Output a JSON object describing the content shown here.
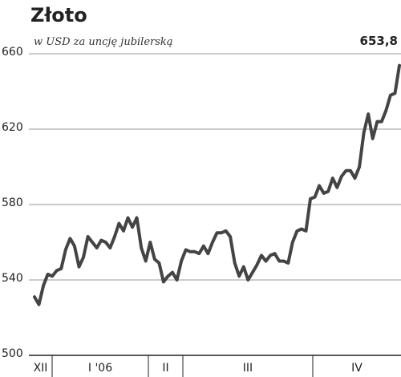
{
  "chart_data": {
    "type": "line",
    "title": "Złoto",
    "subtitle": "w USD za uncję jubilerską",
    "periods": [
      "XII",
      "I '06",
      "II",
      "III",
      "IV"
    ],
    "series": [
      {
        "color": "#444444",
        "values": [
          531,
          527,
          537,
          543,
          542,
          545,
          546,
          556,
          562,
          558,
          547,
          552,
          563,
          560,
          557,
          561,
          560,
          557,
          563,
          570,
          566,
          573,
          568,
          573,
          557,
          550,
          560,
          551,
          549,
          539,
          542,
          544,
          540,
          550,
          556,
          555,
          555,
          554,
          558,
          554,
          560,
          565,
          565,
          566,
          563,
          549,
          542,
          547,
          540,
          544,
          548,
          553,
          550,
          553,
          554,
          550,
          550,
          549,
          560,
          566,
          567,
          566,
          583,
          584,
          590,
          586,
          587,
          594,
          589,
          595,
          598,
          598,
          594,
          600,
          618,
          628,
          615,
          624,
          624,
          630,
          638,
          639,
          653.8
        ]
      }
    ],
    "last_value_label": "653,8",
    "ylim": [
      500,
      660
    ],
    "yticks": [
      500,
      540,
      580,
      620,
      660
    ],
    "grid": true
  }
}
